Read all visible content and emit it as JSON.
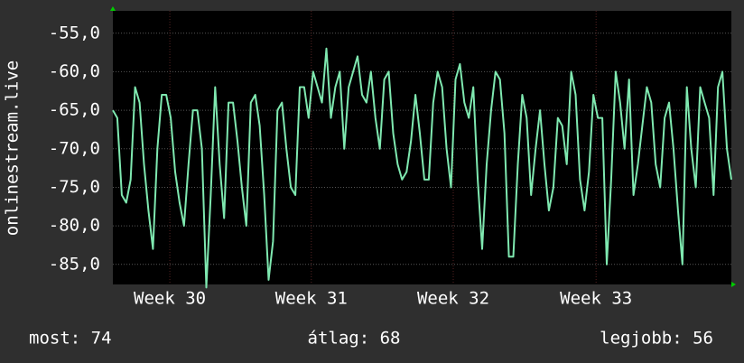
{
  "chart_data": {
    "type": "line",
    "ylabel": "onlinestream.live",
    "series": [
      {
        "color": "#7fe8b0",
        "values": [
          -65,
          -66,
          -76,
          -77,
          -74,
          -62,
          -64,
          -72,
          -78,
          -83,
          -70,
          -63,
          -63,
          -66,
          -73,
          -77,
          -80,
          -72,
          -65,
          -65,
          -70,
          -88,
          -76,
          -62,
          -72,
          -79,
          -64,
          -64,
          -69,
          -75,
          -80,
          -64,
          -63,
          -67,
          -76,
          -87,
          -82,
          -65,
          -64,
          -70,
          -75,
          -76,
          -62,
          -62,
          -66,
          -60,
          -62,
          -64,
          -57,
          -66,
          -62,
          -60,
          -70,
          -62,
          -60,
          -58,
          -63,
          -64,
          -60,
          -66,
          -70,
          -61,
          -60,
          -68,
          -72,
          -74,
          -73,
          -69,
          -63,
          -68,
          -74,
          -74,
          -64,
          -60,
          -62,
          -70,
          -75,
          -61,
          -59,
          -64,
          -66,
          -62,
          -74,
          -83,
          -72,
          -65,
          -60,
          -61,
          -68,
          -84,
          -84,
          -72,
          -63,
          -66,
          -76,
          -70,
          -65,
          -72,
          -78,
          -75,
          -66,
          -67,
          -72,
          -60,
          -63,
          -74,
          -78,
          -73,
          -63,
          -66,
          -66,
          -85,
          -74,
          -60,
          -64,
          -70,
          -61,
          -76,
          -72,
          -67,
          -62,
          -64,
          -72,
          -75,
          -66,
          -64,
          -70,
          -78,
          -85,
          -62,
          -70,
          -75,
          -62,
          -64,
          -66,
          -76,
          -62,
          -60,
          -70,
          -74
        ]
      }
    ],
    "xlim": [
      0,
      139
    ],
    "xticks": [
      {
        "value": 12.8,
        "label": "Week 30"
      },
      {
        "value": 44.6,
        "label": "Week 31"
      },
      {
        "value": 76.5,
        "label": "Week 32"
      },
      {
        "value": 108.6,
        "label": "Week 33"
      }
    ],
    "ylim": [
      -87.6,
      -52.1
    ],
    "yticks": [
      {
        "value": -55,
        "label": "-55,0"
      },
      {
        "value": -60,
        "label": "-60,0"
      },
      {
        "value": -65,
        "label": "-65,0"
      },
      {
        "value": -70,
        "label": "-70,0"
      },
      {
        "value": -75,
        "label": "-75,0"
      },
      {
        "value": -80,
        "label": "-80,0"
      },
      {
        "value": -85,
        "label": "-85,0"
      }
    ],
    "grid": true,
    "footer": [
      "most: 74",
      "átlag: 68",
      "legjobb: 56"
    ]
  }
}
